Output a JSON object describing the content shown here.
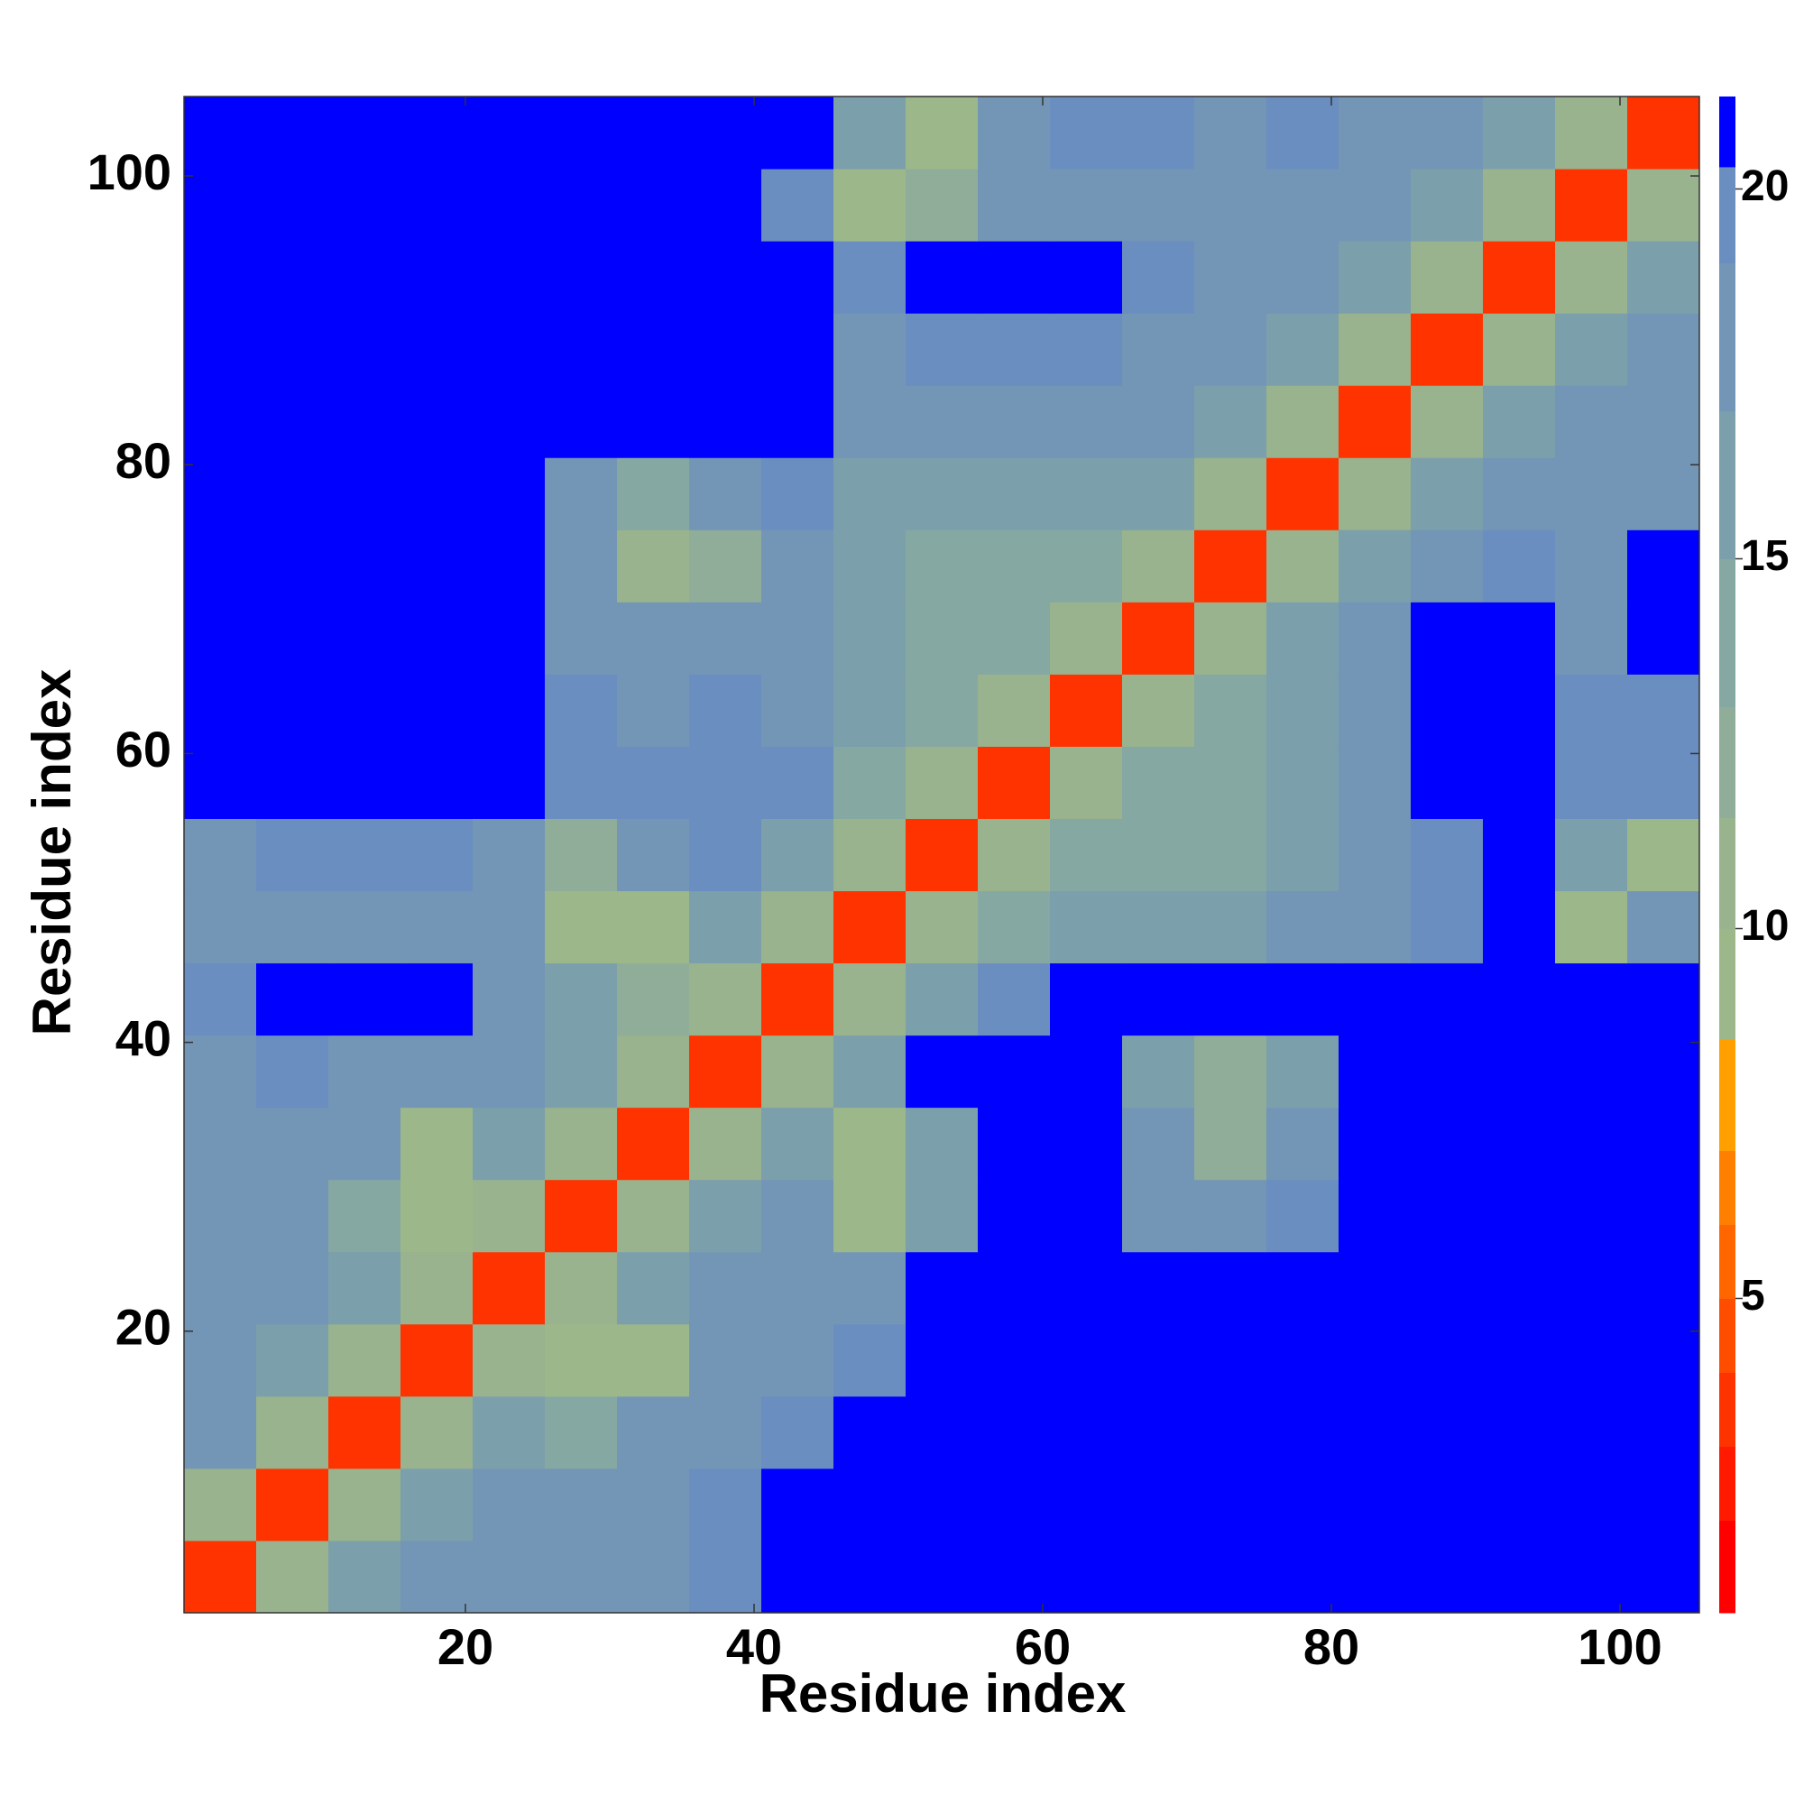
{
  "chart_data": {
    "type": "heatmap",
    "xlabel": "Residue index",
    "ylabel": "Residue index",
    "xbins": [
      0.5,
      5.5,
      10.5,
      15.5,
      20.5,
      25.5,
      30.5,
      35.5,
      40.5,
      45.5,
      50.5,
      55.5,
      60.5,
      65.5,
      70.5,
      75.5,
      80.5,
      85.5,
      90.5,
      95.5,
      100.5,
      105.5
    ],
    "ybins": [
      0.5,
      5.5,
      10.5,
      15.5,
      20.5,
      25.5,
      30.5,
      35.5,
      40.5,
      45.5,
      50.5,
      55.5,
      60.5,
      65.5,
      70.5,
      75.5,
      80.5,
      85.5,
      90.5,
      95.5,
      100.5,
      105.5
    ],
    "values": [
      [
        4,
        11,
        16,
        18,
        18,
        19,
        19,
        20,
        21,
        21,
        21,
        21,
        21,
        21,
        21,
        21,
        21,
        21,
        21,
        21,
        21
      ],
      [
        11,
        4,
        11,
        16,
        18,
        18,
        19,
        20,
        21,
        21,
        21,
        21,
        21,
        21,
        21,
        21,
        21,
        21,
        21,
        21,
        21
      ],
      [
        18,
        11,
        4,
        11,
        16,
        14,
        18,
        19,
        20,
        21,
        21,
        21,
        21,
        21,
        21,
        21,
        21,
        21,
        21,
        21,
        21
      ],
      [
        18,
        16,
        11,
        4,
        11,
        9,
        10,
        18,
        19,
        20,
        21,
        21,
        21,
        21,
        21,
        21,
        21,
        21,
        21,
        21,
        21
      ],
      [
        18,
        18,
        16,
        11,
        4,
        11,
        16,
        18,
        18,
        19,
        21,
        21,
        21,
        21,
        21,
        21,
        21,
        21,
        21,
        21,
        21
      ],
      [
        19,
        18,
        14,
        9,
        11,
        4,
        11,
        16,
        18,
        10,
        17,
        21,
        21,
        19,
        19,
        20,
        21,
        21,
        21,
        21,
        21
      ],
      [
        19,
        19,
        18,
        9,
        16,
        11,
        4,
        11,
        16,
        10,
        16,
        21,
        21,
        18,
        13,
        18,
        21,
        21,
        21,
        21,
        21
      ],
      [
        19,
        20,
        19,
        18,
        18,
        16,
        11,
        4,
        11,
        16,
        21,
        21,
        21,
        17,
        12,
        17,
        21,
        21,
        21,
        21,
        21
      ],
      [
        20,
        21,
        21,
        21,
        18,
        17,
        12,
        11,
        4,
        11,
        16,
        20,
        21,
        21,
        21,
        21,
        21,
        21,
        21,
        21,
        21
      ],
      [
        19,
        19,
        19,
        18,
        19,
        9,
        10,
        16,
        11,
        4,
        11,
        15,
        17,
        17,
        17,
        18,
        19,
        20,
        21,
        9,
        18
      ],
      [
        19,
        20,
        20,
        20,
        18,
        12,
        18,
        20,
        16,
        11,
        4,
        11,
        14,
        15,
        15,
        17,
        18,
        20,
        21,
        16,
        10
      ],
      [
        21,
        21,
        21,
        21,
        21,
        20,
        20,
        20,
        20,
        15,
        11,
        4,
        11,
        14,
        15,
        17,
        19,
        21,
        21,
        20,
        20
      ],
      [
        21,
        21,
        21,
        21,
        21,
        20,
        19,
        20,
        19,
        16,
        14,
        11,
        4,
        11,
        15,
        17,
        19,
        21,
        21,
        20,
        20
      ],
      [
        21,
        21,
        21,
        21,
        21,
        19,
        18,
        19,
        18,
        16,
        15,
        14,
        11,
        4,
        11,
        16,
        18,
        21,
        21,
        19,
        21
      ],
      [
        21,
        21,
        21,
        21,
        21,
        18,
        11,
        12,
        18,
        16,
        14,
        15,
        15,
        11,
        4,
        11,
        16,
        18,
        20,
        19,
        21
      ],
      [
        21,
        21,
        21,
        21,
        21,
        19,
        14,
        18,
        20,
        17,
        17,
        17,
        17,
        16,
        11,
        4,
        11,
        16,
        18,
        18,
        19
      ],
      [
        21,
        21,
        21,
        21,
        21,
        21,
        21,
        21,
        21,
        18,
        18,
        19,
        19,
        18,
        16,
        11,
        4,
        11,
        16,
        18,
        19
      ],
      [
        21,
        21,
        21,
        21,
        21,
        21,
        21,
        21,
        21,
        19,
        20,
        20,
        20,
        19,
        18,
        16,
        11,
        4,
        11,
        16,
        19
      ],
      [
        21,
        21,
        21,
        21,
        21,
        21,
        21,
        21,
        21,
        20,
        21,
        21,
        21,
        20,
        19,
        18,
        16,
        11,
        4,
        11,
        16
      ],
      [
        21,
        21,
        21,
        21,
        21,
        21,
        21,
        21,
        20,
        9,
        12,
        19,
        19,
        19,
        19,
        19,
        18,
        17,
        11,
        4,
        11
      ],
      [
        21,
        21,
        21,
        21,
        21,
        21,
        21,
        21,
        21,
        17,
        10,
        19,
        20,
        20,
        19,
        20,
        19,
        18,
        16,
        11,
        4
      ]
    ],
    "xlim": [
      0.5,
      105.5
    ],
    "ylim": [
      0.5,
      105.5
    ],
    "xticks": [
      20,
      40,
      60,
      80,
      100
    ],
    "yticks": [
      20,
      40,
      60,
      80,
      100
    ],
    "colorbar": {
      "lim": [
        0.75,
        21.25
      ],
      "ticks": [
        5,
        10,
        15,
        20
      ],
      "levels": [
        0.75,
        2,
        3,
        4,
        5,
        6,
        7,
        8.5,
        10,
        11.5,
        13,
        15,
        17,
        19,
        20.3,
        21.25
      ],
      "colors": [
        "#ff0000",
        "#ff1a00",
        "#ff3300",
        "#ff4d00",
        "#ff6600",
        "#ff8000",
        "#ffa000",
        "#9cb88a",
        "#98b38e",
        "#8fad98",
        "#86a8a2",
        "#7c9fac",
        "#7396b6",
        "#6a8ec0",
        "#0000ff"
      ]
    }
  }
}
